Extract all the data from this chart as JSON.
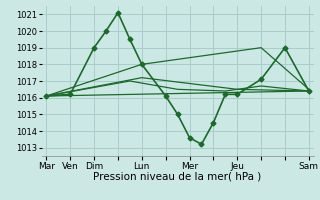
{
  "bg_color": "#cce8e4",
  "grid_color": "#aacccc",
  "line_color": "#1a6b2a",
  "xlabel": "Pression niveau de la mer( hPa )",
  "xlabel_fontsize": 7.5,
  "ylim": [
    1012.5,
    1021.5
  ],
  "yticks": [
    1013,
    1014,
    1015,
    1016,
    1017,
    1018,
    1019,
    1020,
    1021
  ],
  "xtick_labels": [
    "Mar",
    "Ven",
    "Dim",
    "",
    "Lun",
    "",
    "Mer",
    "",
    "Jeu",
    "",
    "",
    "Sam"
  ],
  "xtick_positions": [
    0,
    1,
    2,
    3,
    4,
    5,
    6,
    7,
    8,
    9,
    10,
    11
  ],
  "xlim": [
    -0.2,
    11.2
  ],
  "series": [
    {
      "x": [
        0,
        1,
        2,
        2.5,
        3,
        3.5,
        4,
        5,
        5.5,
        6,
        6.5,
        7,
        7.5,
        8,
        9,
        10,
        11
      ],
      "y": [
        1016.1,
        1016.2,
        1019.0,
        1020.0,
        1021.1,
        1019.5,
        1018.0,
        1016.1,
        1015.0,
        1013.6,
        1013.2,
        1014.5,
        1016.2,
        1016.2,
        1017.1,
        1019.0,
        1016.4
      ],
      "has_markers": true,
      "lw": 1.2
    },
    {
      "x": [
        0,
        11
      ],
      "y": [
        1016.1,
        1016.4
      ],
      "has_markers": false,
      "lw": 0.9
    },
    {
      "x": [
        0,
        4,
        9,
        11
      ],
      "y": [
        1016.1,
        1018.0,
        1019.0,
        1016.5
      ],
      "has_markers": false,
      "lw": 0.9
    },
    {
      "x": [
        0,
        4,
        8,
        11
      ],
      "y": [
        1016.1,
        1017.2,
        1016.5,
        1016.4
      ],
      "has_markers": false,
      "lw": 0.9
    },
    {
      "x": [
        0,
        3.5,
        5.5,
        7.5,
        9,
        11
      ],
      "y": [
        1016.1,
        1017.0,
        1016.5,
        1016.4,
        1016.7,
        1016.4
      ],
      "has_markers": false,
      "lw": 0.9
    }
  ]
}
